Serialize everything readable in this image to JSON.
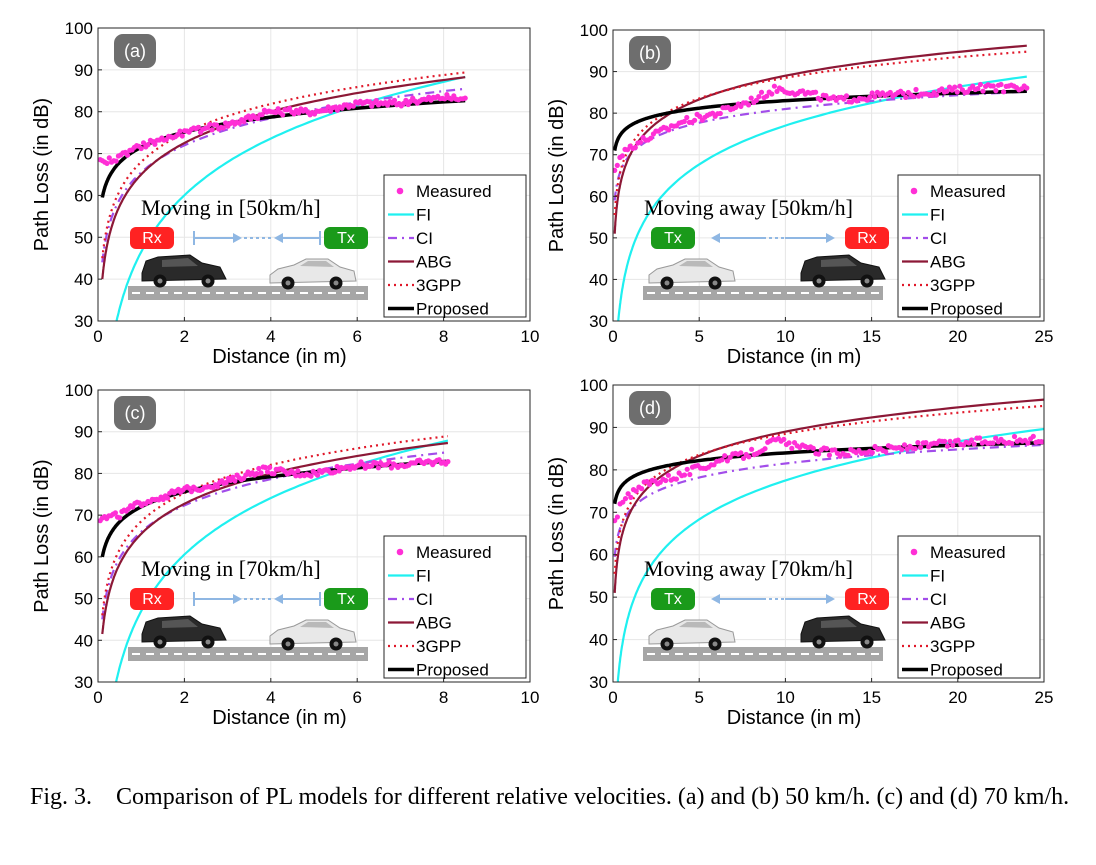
{
  "caption": {
    "label": "Fig. 3.",
    "text": "Comparison of PL models for different relative velocities. (a) and (b) 50 km/h. (c) and (d) 70 km/h."
  },
  "colors": {
    "measured": "#ff2fd6",
    "fi": "#1ff0f0",
    "ci": "#a24dea",
    "abg": "#8c1836",
    "gpp": "#e0182a",
    "proposed": "#000000",
    "badge": "#6e6e6e",
    "rx_tag": "#ff2222",
    "tx_tag": "#1a9a1a",
    "arrow": "#8fb7e3",
    "road": "#a6a6a6"
  },
  "chart_data": [
    {
      "id": "a",
      "type": "line",
      "panel_label": "(a)",
      "xlabel": "Distance (in m)",
      "ylabel": "Path Loss (in dB)",
      "xlim": [
        0,
        10
      ],
      "ylim": [
        30,
        100
      ],
      "xticks": [
        0,
        2,
        4,
        6,
        8,
        10
      ],
      "yticks": [
        30,
        40,
        50,
        60,
        70,
        80,
        90,
        100
      ],
      "grid": true,
      "legend_position": "bottom-right",
      "annotation": "Moving in [50km/h]",
      "scenario": "moving-in",
      "tx_label": "Tx",
      "rx_label": "Rx",
      "xmax_data": 8.5,
      "series": [
        {
          "name": "Measured",
          "style": "markers",
          "key": "measured",
          "x": [
            0.05,
            0.5,
            1,
            2,
            3,
            4,
            5,
            6,
            7,
            8,
            8.5
          ],
          "y": [
            68,
            69,
            72,
            75,
            77,
            80,
            80,
            82,
            82,
            83.5,
            83
          ],
          "noise": 0.8
        },
        {
          "name": "FI",
          "key": "fi",
          "model": {
            "A": 46.5,
            "B": 45.0,
            "xmin": 0.1
          }
        },
        {
          "name": "CI",
          "key": "ci",
          "model": {
            "A": 65.5,
            "B": 21.5,
            "xmin": 0.1
          }
        },
        {
          "name": "ABG",
          "key": "abg",
          "model": {
            "A": 65.0,
            "B": 25.0,
            "xmin": 0.1
          }
        },
        {
          "name": "3GPP",
          "key": "gpp",
          "model": {
            "A": 68.0,
            "B": 23.0,
            "xmin": 0.1
          }
        },
        {
          "name": "Proposed",
          "key": "proposed",
          "model": {
            "A": 71.5,
            "B": 12.0,
            "xmin": 0.1
          }
        }
      ]
    },
    {
      "id": "b",
      "type": "line",
      "panel_label": "(b)",
      "xlabel": "Distance (in m)",
      "ylabel": "Path Loss (in dB)",
      "xlim": [
        0,
        25
      ],
      "ylim": [
        30,
        100
      ],
      "xticks": [
        0,
        5,
        10,
        15,
        20,
        25
      ],
      "yticks": [
        30,
        40,
        50,
        60,
        70,
        80,
        90,
        100
      ],
      "grid": true,
      "legend_position": "bottom-right",
      "annotation": "Moving away [50km/h]",
      "scenario": "moving-away",
      "tx_label": "Tx",
      "rx_label": "Rx",
      "xmax_data": 24,
      "series": [
        {
          "name": "Measured",
          "style": "markers",
          "key": "measured",
          "x": [
            0.1,
            0.5,
            1,
            2,
            4,
            6,
            8,
            9.5,
            11,
            13,
            15,
            18,
            21,
            24
          ],
          "y": [
            67,
            70,
            72,
            74,
            78,
            80,
            83,
            86,
            85,
            83,
            84,
            85,
            86,
            86
          ],
          "noise": 0.9
        },
        {
          "name": "FI",
          "key": "fi",
          "model": {
            "A": 46.0,
            "B": 31.0,
            "xmin": 0.1
          }
        },
        {
          "name": "CI",
          "key": "ci",
          "model": {
            "A": 70.0,
            "B": 11.0,
            "xmin": 0.1
          }
        },
        {
          "name": "ABG",
          "key": "abg",
          "model": {
            "A": 70.0,
            "B": 19.0,
            "xmin": 0.1
          }
        },
        {
          "name": "3GPP",
          "key": "gpp",
          "model": {
            "A": 72.0,
            "B": 16.5,
            "xmin": 0.1
          }
        },
        {
          "name": "Proposed",
          "key": "proposed",
          "model": {
            "A": 77.0,
            "B": 6.0,
            "xmin": 0.1
          }
        }
      ]
    },
    {
      "id": "c",
      "type": "line",
      "panel_label": "(c)",
      "xlabel": "Distance (in m)",
      "ylabel": "Path Loss (in dB)",
      "xlim": [
        0,
        10
      ],
      "ylim": [
        30,
        100
      ],
      "xticks": [
        0,
        2,
        4,
        6,
        8,
        10
      ],
      "yticks": [
        30,
        40,
        50,
        60,
        70,
        80,
        90,
        100
      ],
      "grid": true,
      "legend_position": "bottom-right",
      "annotation": "Moving in [70km/h]",
      "scenario": "moving-in",
      "tx_label": "Tx",
      "rx_label": "Rx",
      "xmax_data": 8.1,
      "series": [
        {
          "name": "Measured",
          "style": "markers",
          "key": "measured",
          "x": [
            0.05,
            0.5,
            1,
            2,
            3,
            3.8,
            4.5,
            5,
            6,
            7,
            8.1
          ],
          "y": [
            69,
            70,
            73,
            76,
            78,
            81,
            80,
            80,
            82,
            82,
            83
          ],
          "noise": 0.8
        },
        {
          "name": "FI",
          "key": "fi",
          "model": {
            "A": 47.0,
            "B": 45.0,
            "xmin": 0.1
          }
        },
        {
          "name": "CI",
          "key": "ci",
          "model": {
            "A": 66.0,
            "B": 21.0,
            "xmin": 0.1
          }
        },
        {
          "name": "ABG",
          "key": "abg",
          "model": {
            "A": 65.5,
            "B": 24.0,
            "xmin": 0.1
          }
        },
        {
          "name": "3GPP",
          "key": "gpp",
          "model": {
            "A": 68.5,
            "B": 22.5,
            "xmin": 0.1
          }
        },
        {
          "name": "Proposed",
          "key": "proposed",
          "model": {
            "A": 72.0,
            "B": 12.0,
            "xmin": 0.1
          }
        }
      ]
    },
    {
      "id": "d",
      "type": "line",
      "panel_label": "(d)",
      "xlabel": "Distance (in m)",
      "ylabel": "Path Loss (in dB)",
      "xlim": [
        0,
        25
      ],
      "ylim": [
        30,
        100
      ],
      "xticks": [
        0,
        5,
        10,
        15,
        20,
        25
      ],
      "yticks": [
        30,
        40,
        50,
        60,
        70,
        80,
        90,
        100
      ],
      "grid": true,
      "legend_position": "bottom-right",
      "annotation": "Moving away [70km/h]",
      "scenario": "moving-away",
      "tx_label": "Tx",
      "rx_label": "Rx",
      "xmax_data": 25,
      "series": [
        {
          "name": "Measured",
          "style": "markers",
          "key": "measured",
          "x": [
            0.1,
            0.5,
            1,
            2,
            4,
            6,
            8,
            9.5,
            11,
            13,
            16,
            19,
            22,
            25
          ],
          "y": [
            68,
            72,
            74,
            77,
            79,
            82,
            84,
            87,
            85,
            84,
            85,
            86,
            87,
            87
          ],
          "noise": 0.9
        },
        {
          "name": "FI",
          "key": "fi",
          "model": {
            "A": 47.0,
            "B": 30.5,
            "xmin": 0.1
          }
        },
        {
          "name": "CI",
          "key": "ci",
          "model": {
            "A": 70.5,
            "B": 11.0,
            "xmin": 0.1
          }
        },
        {
          "name": "ABG",
          "key": "abg",
          "model": {
            "A": 70.0,
            "B": 19.0,
            "xmin": 0.1
          }
        },
        {
          "name": "3GPP",
          "key": "gpp",
          "model": {
            "A": 72.0,
            "B": 16.5,
            "xmin": 0.1
          }
        },
        {
          "name": "Proposed",
          "key": "proposed",
          "model": {
            "A": 78.0,
            "B": 6.0,
            "xmin": 0.1
          }
        }
      ]
    }
  ]
}
